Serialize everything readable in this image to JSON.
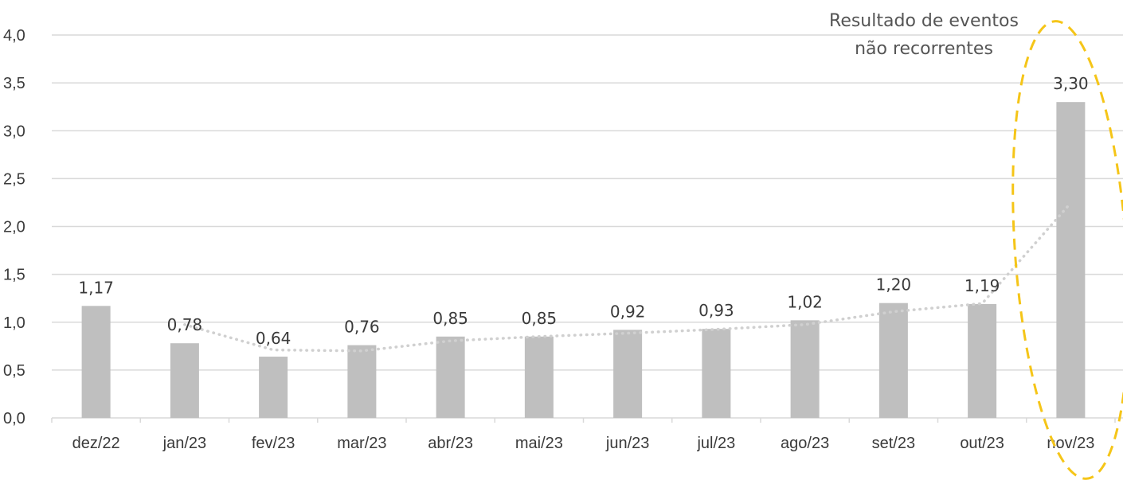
{
  "chart_data": {
    "type": "bar",
    "categories": [
      "dez/22",
      "jan/23",
      "fev/23",
      "mar/23",
      "abr/23",
      "mai/23",
      "jun/23",
      "jul/23",
      "ago/23",
      "set/23",
      "out/23",
      "nov/23"
    ],
    "values": [
      1.17,
      0.78,
      0.64,
      0.76,
      0.85,
      0.85,
      0.92,
      0.93,
      1.02,
      1.2,
      1.19,
      3.3
    ],
    "data_labels": [
      "1,17",
      "0,78",
      "0,64",
      "0,76",
      "0,85",
      "0,85",
      "0,92",
      "0,93",
      "1,02",
      "1,20",
      "1,19",
      "3,30"
    ],
    "yticks": [
      "0,0",
      "0,5",
      "1,0",
      "1,5",
      "2,0",
      "2,5",
      "3,0",
      "3,5",
      "4,0"
    ],
    "ylim": [
      0,
      4
    ],
    "grid": true,
    "trendline": {
      "style": "dotted",
      "note": "moving average trend",
      "values": [
        null,
        0.975,
        0.71,
        0.7,
        0.805,
        0.85,
        0.885,
        0.925,
        0.975,
        1.11,
        1.195,
        2.245
      ]
    },
    "annotation": {
      "lines": [
        "Resultado de eventos",
        "não recorrentes"
      ],
      "target_category": "nov/23"
    },
    "colors": {
      "bar": "#bfbfbf",
      "grid": "#d9d9d9",
      "trendline": "#d0d0d0",
      "ellipse": "#f5c518",
      "text": "#3a3a3a"
    }
  }
}
